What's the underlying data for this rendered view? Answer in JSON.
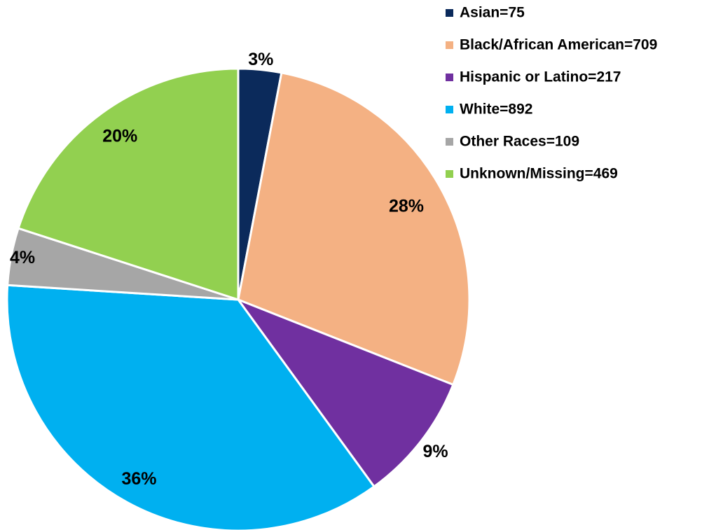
{
  "chart_data": {
    "type": "pie",
    "categories": [
      "Asian=75",
      "Black/African American=709",
      "Hispanic or Latino=217",
      "White=892",
      "Other Races=109",
      "Unknown/Missing=469"
    ],
    "values": [
      3,
      28,
      9,
      36,
      4,
      20
    ],
    "value_labels": [
      "3%",
      "28%",
      "9%",
      "36%",
      "4%",
      "20%"
    ],
    "colors": [
      "#0b2a5b",
      "#f4b183",
      "#7030a0",
      "#00b0f0",
      "#a6a6a6",
      "#92d050"
    ]
  }
}
